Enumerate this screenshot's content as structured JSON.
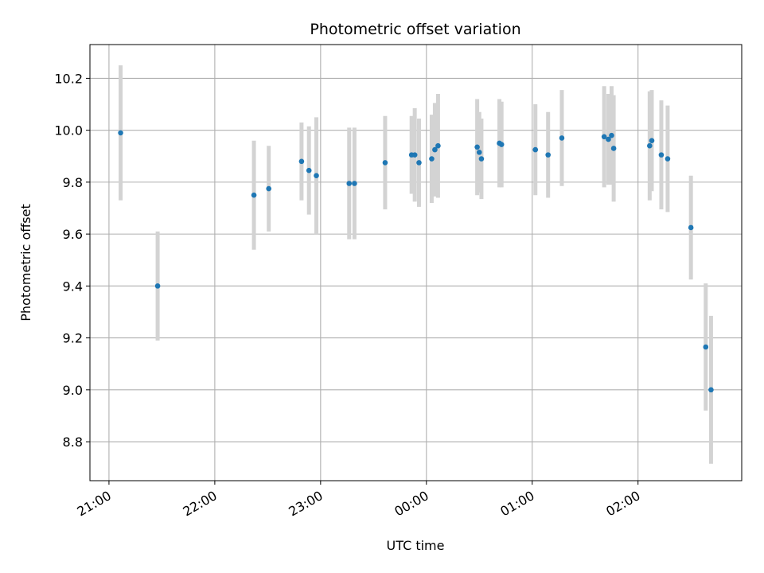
{
  "chart_data": {
    "type": "scatter",
    "title": "Photometric offset variation",
    "xlabel": "UTC time",
    "ylabel": "Photometric offset",
    "x_unit": "hours",
    "xlim": [
      20.82,
      26.98
    ],
    "ylim": [
      8.65,
      10.33
    ],
    "x_ticks": [
      {
        "value": 21,
        "label": "21:00"
      },
      {
        "value": 22,
        "label": "22:00"
      },
      {
        "value": 23,
        "label": "23:00"
      },
      {
        "value": 24,
        "label": "00:00"
      },
      {
        "value": 25,
        "label": "01:00"
      },
      {
        "value": 26,
        "label": "02:00"
      }
    ],
    "y_ticks": [
      {
        "value": 8.8,
        "label": "8.8"
      },
      {
        "value": 9.0,
        "label": "9.0"
      },
      {
        "value": 9.2,
        "label": "9.2"
      },
      {
        "value": 9.4,
        "label": "9.4"
      },
      {
        "value": 9.6,
        "label": "9.6"
      },
      {
        "value": 9.8,
        "label": "9.8"
      },
      {
        "value": 10.0,
        "label": "10.0"
      },
      {
        "value": 10.2,
        "label": "10.2"
      }
    ],
    "grid": true,
    "marker_color": "#1f77b4",
    "errorbar_color": "#d3d3d3",
    "points": [
      {
        "x": 21.11,
        "y": 9.99,
        "err": 0.26
      },
      {
        "x": 21.46,
        "y": 9.4,
        "err": 0.21
      },
      {
        "x": 22.37,
        "y": 9.75,
        "err": 0.21
      },
      {
        "x": 22.51,
        "y": 9.775,
        "err": 0.165
      },
      {
        "x": 22.82,
        "y": 9.88,
        "err": 0.15
      },
      {
        "x": 22.89,
        "y": 9.845,
        "err": 0.17
      },
      {
        "x": 22.96,
        "y": 9.825,
        "err": 0.225
      },
      {
        "x": 23.27,
        "y": 9.795,
        "err": 0.215
      },
      {
        "x": 23.32,
        "y": 9.795,
        "err": 0.215
      },
      {
        "x": 23.61,
        "y": 9.875,
        "err": 0.18
      },
      {
        "x": 23.86,
        "y": 9.905,
        "err": 0.15
      },
      {
        "x": 23.89,
        "y": 9.905,
        "err": 0.18
      },
      {
        "x": 23.93,
        "y": 9.875,
        "err": 0.17
      },
      {
        "x": 24.05,
        "y": 9.89,
        "err": 0.17
      },
      {
        "x": 24.08,
        "y": 9.925,
        "err": 0.18
      },
      {
        "x": 24.11,
        "y": 9.94,
        "err": 0.2
      },
      {
        "x": 24.48,
        "y": 9.935,
        "err": 0.185
      },
      {
        "x": 24.5,
        "y": 9.915,
        "err": 0.155
      },
      {
        "x": 24.52,
        "y": 9.89,
        "err": 0.155
      },
      {
        "x": 24.69,
        "y": 9.95,
        "err": 0.17
      },
      {
        "x": 24.71,
        "y": 9.945,
        "err": 0.165
      },
      {
        "x": 25.03,
        "y": 9.925,
        "err": 0.175
      },
      {
        "x": 25.15,
        "y": 9.905,
        "err": 0.165
      },
      {
        "x": 25.28,
        "y": 9.97,
        "err": 0.185
      },
      {
        "x": 25.68,
        "y": 9.975,
        "err": 0.195
      },
      {
        "x": 25.72,
        "y": 9.965,
        "err": 0.175
      },
      {
        "x": 25.75,
        "y": 9.98,
        "err": 0.19
      },
      {
        "x": 25.77,
        "y": 9.93,
        "err": 0.205
      },
      {
        "x": 26.11,
        "y": 9.94,
        "err": 0.21
      },
      {
        "x": 26.13,
        "y": 9.96,
        "err": 0.195
      },
      {
        "x": 26.22,
        "y": 9.905,
        "err": 0.21
      },
      {
        "x": 26.28,
        "y": 9.89,
        "err": 0.205
      },
      {
        "x": 26.5,
        "y": 9.625,
        "err": 0.2
      },
      {
        "x": 26.64,
        "y": 9.165,
        "err": 0.245
      },
      {
        "x": 26.69,
        "y": 9.0,
        "err": 0.285
      }
    ]
  }
}
